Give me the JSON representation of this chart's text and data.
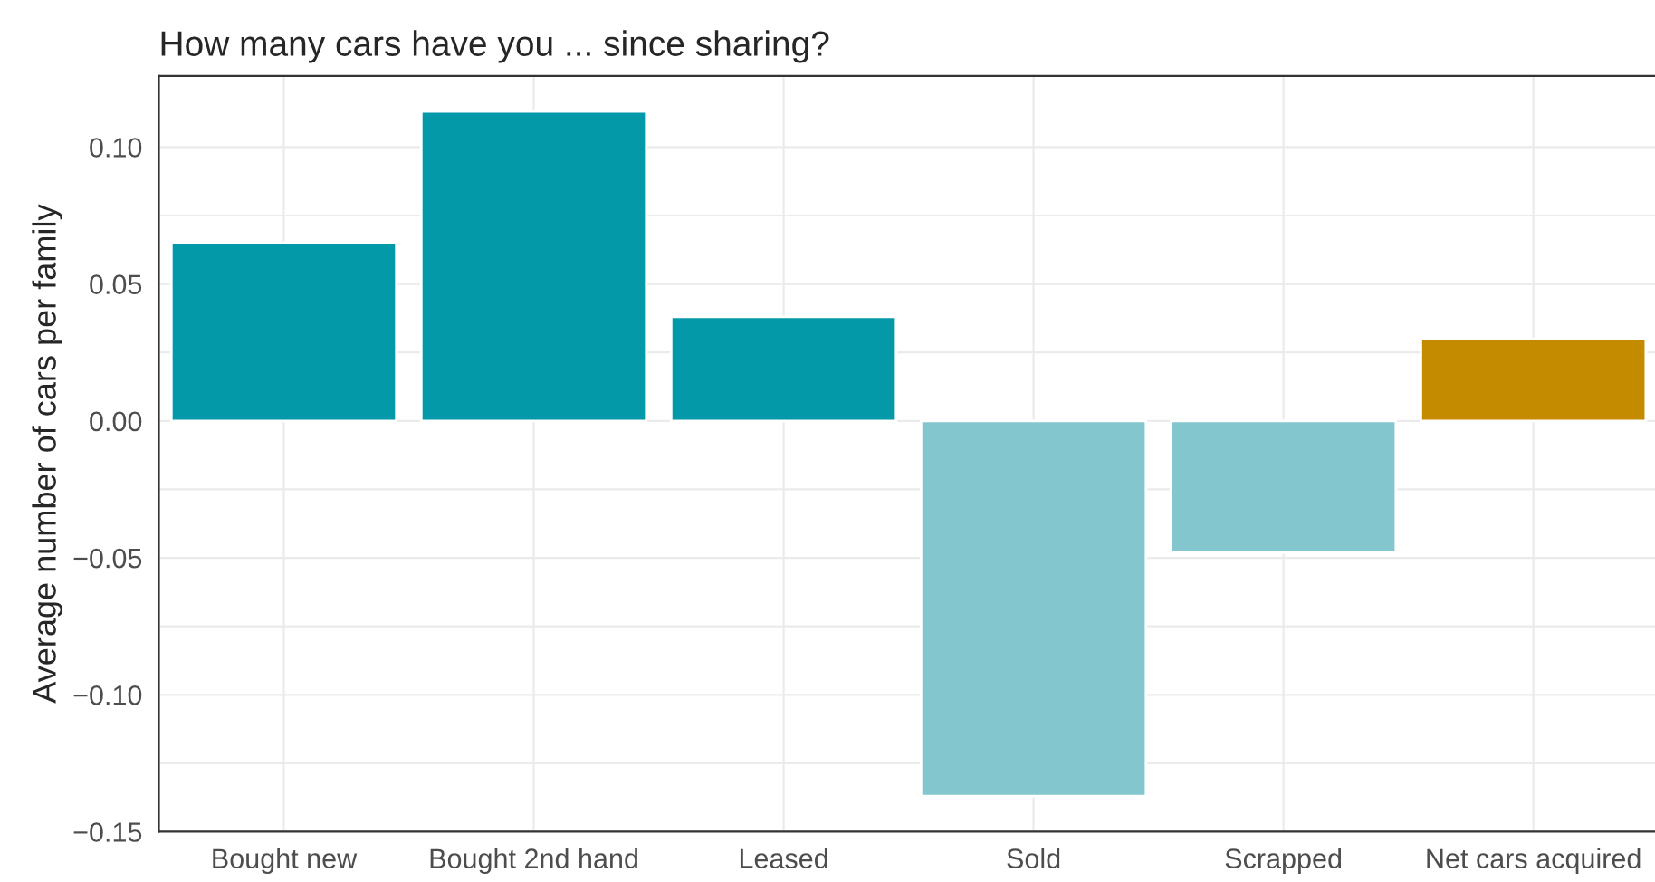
{
  "chart_data": {
    "type": "bar",
    "title": "How many cars have you ... since sharing?",
    "ylabel": "Average number of cars per family",
    "categories": [
      "Bought new",
      "Bought 2nd hand",
      "Leased",
      "Sold",
      "Scrapped",
      "Net cars acquired"
    ],
    "values": [
      0.065,
      0.113,
      0.038,
      -0.137,
      -0.048,
      0.03
    ],
    "colors": [
      "#0399a8",
      "#0399a8",
      "#0399a8",
      "#83c6ce",
      "#83c6ce",
      "#c48a00"
    ],
    "ylim": [
      -0.15,
      0.126
    ],
    "yticks": [
      {
        "value": -0.15,
        "label": "−0.15"
      },
      {
        "value": -0.1,
        "label": "−0.10"
      },
      {
        "value": -0.05,
        "label": "−0.05"
      },
      {
        "value": 0,
        "label": "0.00"
      },
      {
        "value": 0.05,
        "label": "0.05"
      },
      {
        "value": 0.1,
        "label": "0.10"
      }
    ],
    "grid": true
  }
}
